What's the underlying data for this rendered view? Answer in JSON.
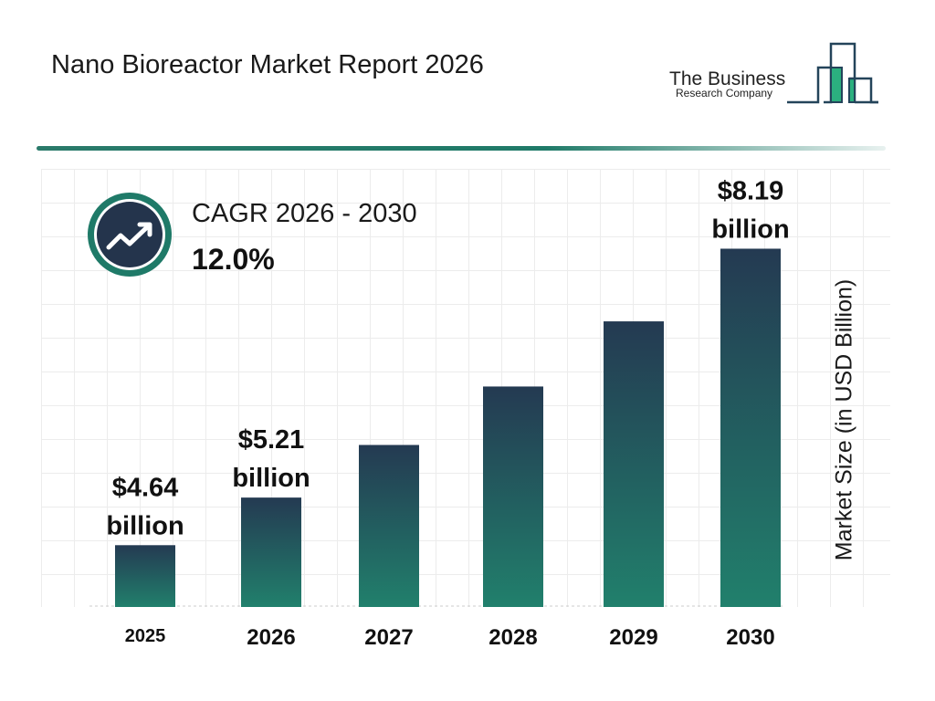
{
  "header": {
    "title": "Nano Bioreactor Market Report 2026"
  },
  "logo": {
    "text_line1": "The Business",
    "text_line2": "Research Company"
  },
  "cagr": {
    "label": "CAGR 2026 - 2030",
    "value": "12.0%",
    "icon": "trend-up-icon"
  },
  "colors": {
    "bar_top": "#243a52",
    "bar_bottom": "#21806c",
    "accent": "#1f7a68",
    "icon_ring": "#1f7a68",
    "icon_fill": "#24344c"
  },
  "chart_data": {
    "type": "bar",
    "categories": [
      "2025",
      "2026",
      "2027",
      "2028",
      "2029",
      "2030"
    ],
    "values": [
      4.64,
      5.21,
      5.84,
      6.54,
      7.32,
      8.19
    ],
    "data_labels": [
      {
        "index": 0,
        "line1": "$4.64",
        "line2": "billion"
      },
      {
        "index": 1,
        "line1": "$5.21",
        "line2": "billion"
      },
      {
        "index": 5,
        "line1": "$8.19",
        "line2": "billion"
      }
    ],
    "title": "Nano Bioreactor Market Report 2026",
    "xlabel": "",
    "ylabel": "Market Size (in USD Billion)",
    "grid": true,
    "legend": "none"
  }
}
